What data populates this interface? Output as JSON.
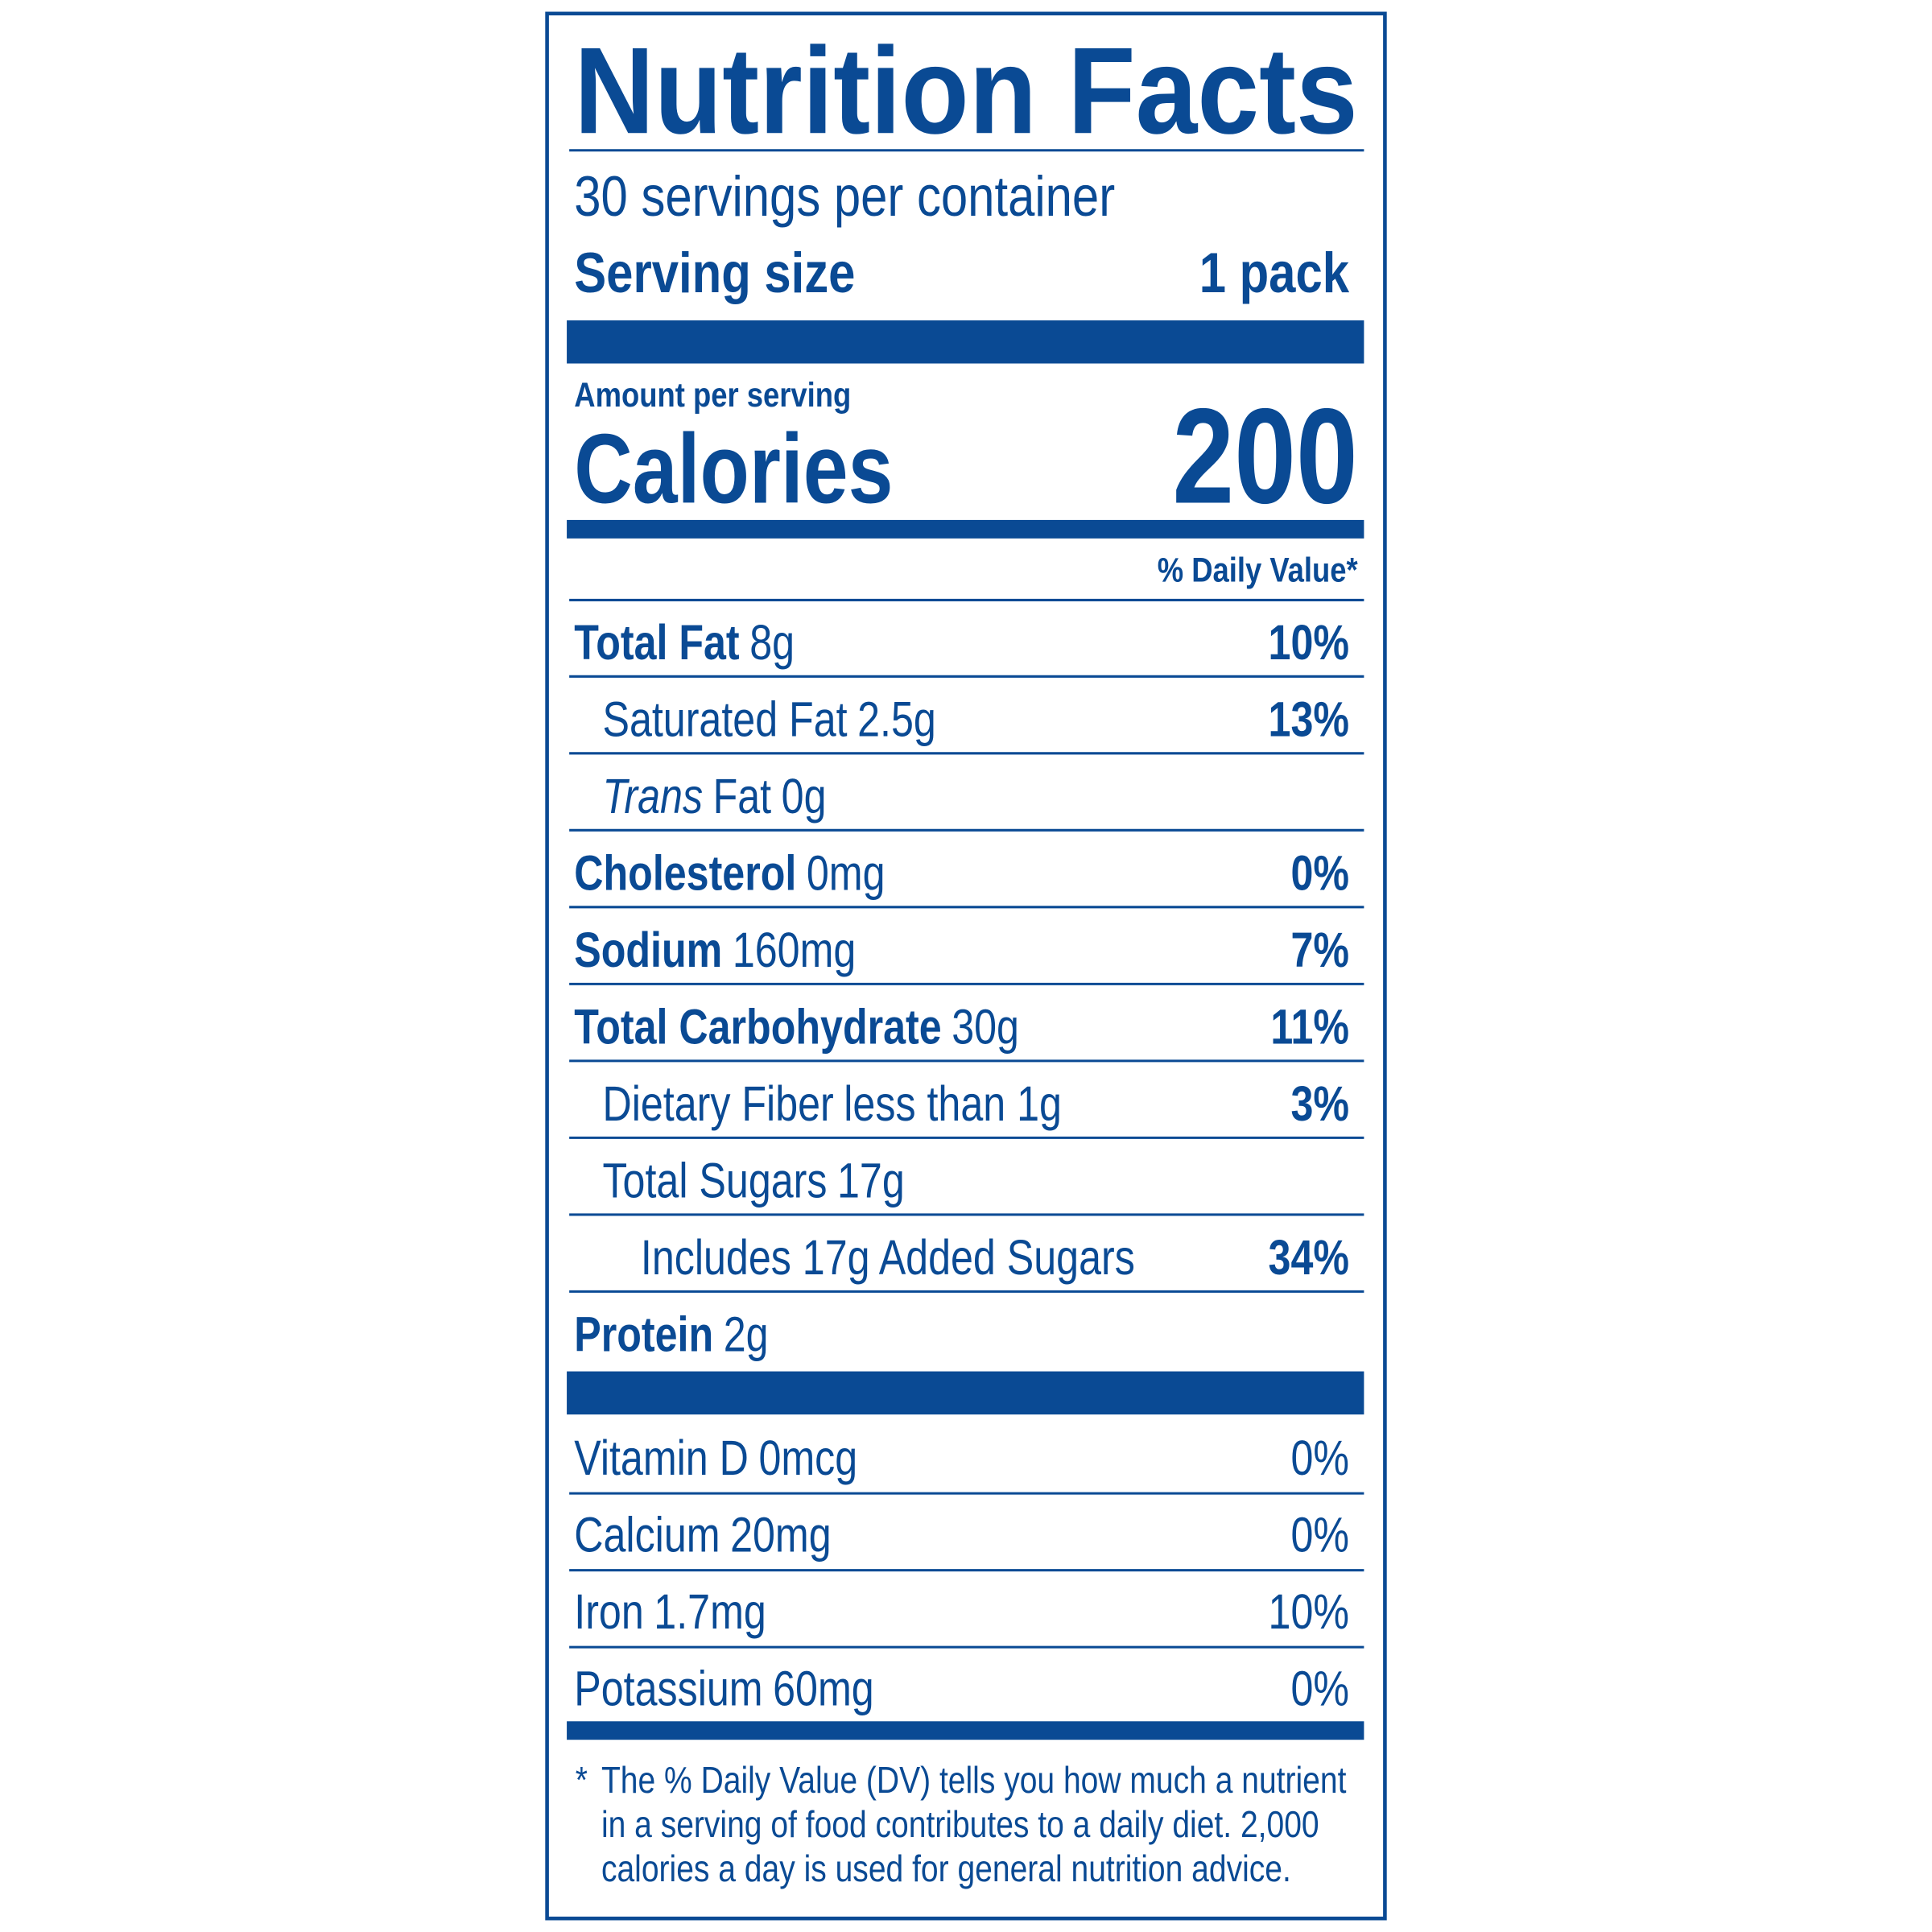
{
  "title": "Nutrition Facts",
  "servings": "30 servings per container",
  "serving_size": {
    "label": "Serving size",
    "value": "1 pack"
  },
  "amount_per_serving": "Amount per serving",
  "calories": {
    "label": "Calories",
    "value": 200
  },
  "daily_value_header": "% Daily Value*",
  "nutrients": [
    {
      "name": "Total Fat",
      "amount": "8g",
      "dv": "10%"
    },
    {
      "name": "Saturated Fat",
      "amount": "2.5g",
      "dv": "13%"
    },
    {
      "prefix": "Trans",
      "name": "Fat",
      "amount": "0g"
    },
    {
      "name": "Cholesterol",
      "amount": "0mg",
      "dv": "0%"
    },
    {
      "name": "Sodium",
      "amount": "160mg",
      "dv": "7%"
    },
    {
      "name": "Total Carbohydrate",
      "amount": "30g",
      "dv": "11%"
    },
    {
      "name": "Dietary Fiber",
      "amount": "less than 1g",
      "dv": "3%"
    },
    {
      "name": "Total Sugars",
      "amount": "17g"
    },
    {
      "name": "Includes 17g Added Sugars",
      "dv": "34%"
    },
    {
      "name": "Protein",
      "amount": "2g"
    }
  ],
  "vitamins": [
    {
      "name": "Vitamin D",
      "amount": "0mcg",
      "dv": "0%"
    },
    {
      "name": "Calcium",
      "amount": "20mg",
      "dv": "0%"
    },
    {
      "name": "Iron",
      "amount": "1.7mg",
      "dv": "10%"
    },
    {
      "name": "Potassium",
      "amount": "60mg",
      "dv": "0%"
    }
  ],
  "footnote": {
    "marker": "*",
    "lines": [
      "The % Daily Value (DV) tells you how much a nutrient",
      "in a serving of food contributes to a daily diet. 2,000",
      "calories a day is used for general nutrition advice."
    ]
  }
}
